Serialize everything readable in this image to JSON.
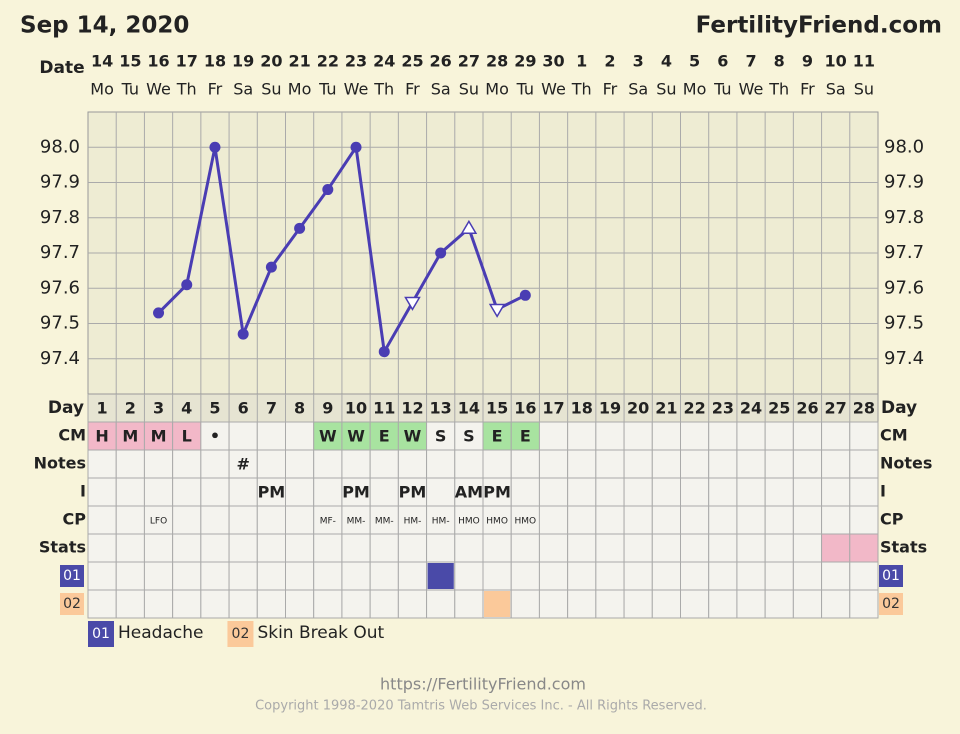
{
  "header": {
    "date": "Sep 14, 2020",
    "site": "FertilityFriend.com"
  },
  "chart_data": {
    "type": "line",
    "x_label": "Date",
    "categories": [
      "14",
      "15",
      "16",
      "17",
      "18",
      "19",
      "20",
      "21",
      "22",
      "23",
      "24",
      "25",
      "26",
      "27",
      "28",
      "29",
      "30",
      "1",
      "2",
      "3",
      "4",
      "5",
      "6",
      "7",
      "8",
      "9",
      "10",
      "11"
    ],
    "weekdays": [
      "Mo",
      "Tu",
      "We",
      "Th",
      "Fr",
      "Sa",
      "Su",
      "Mo",
      "Tu",
      "We",
      "Th",
      "Fr",
      "Sa",
      "Su",
      "Mo",
      "Tu",
      "We",
      "Th",
      "Fr",
      "Sa",
      "Su",
      "Mo",
      "Tu",
      "We",
      "Th",
      "Fr",
      "Sa",
      "Su"
    ],
    "series": [
      {
        "color": "#4a3db3",
        "values": [
          null,
          null,
          97.53,
          97.61,
          98.0,
          97.47,
          97.66,
          97.77,
          97.88,
          98.0,
          97.42,
          97.56,
          97.7,
          97.77,
          97.54,
          97.58,
          null,
          null,
          null,
          null,
          null,
          null,
          null,
          null,
          null,
          null,
          null,
          null
        ],
        "markers": [
          null,
          null,
          "circle",
          "circle",
          "circle",
          "circle",
          "circle",
          "circle",
          "circle",
          "circle",
          "circle",
          "triangle-down",
          "circle",
          "triangle-up",
          "triangle-down",
          "circle",
          null,
          null,
          null,
          null,
          null,
          null,
          null,
          null,
          null,
          null,
          null,
          null
        ]
      }
    ],
    "ylim": [
      97.3,
      98.1
    ],
    "yticks": [
      97.4,
      97.5,
      97.6,
      97.7,
      97.8,
      97.9,
      {
        "value": 98,
        "label": "98.0"
      }
    ],
    "grid": true
  },
  "table": {
    "day_label": "Day",
    "days": [
      1,
      2,
      3,
      4,
      5,
      6,
      7,
      8,
      9,
      10,
      11,
      12,
      13,
      14,
      15,
      16,
      17,
      18,
      19,
      20,
      21,
      22,
      23,
      24,
      25,
      26,
      27,
      28
    ],
    "rows": [
      {
        "label": "CM",
        "style": "cm",
        "cells": [
          "H",
          "M",
          "M",
          "L",
          "•",
          null,
          null,
          null,
          "W",
          "W",
          "E",
          "W",
          "S",
          "S",
          "E",
          "E",
          null,
          null,
          null,
          null,
          null,
          null,
          null,
          null,
          null,
          null,
          null,
          null
        ],
        "colors": [
          "#f2b8c8",
          "#f2b8c8",
          "#f2b8c8",
          "#f2b8c8",
          null,
          null,
          null,
          null,
          "#a8e3a0",
          "#a8e3a0",
          "#a8e3a0",
          "#a8e3a0",
          null,
          null,
          "#a8e3a0",
          "#a8e3a0",
          null,
          null,
          null,
          null,
          null,
          null,
          null,
          null,
          null,
          null,
          null,
          null
        ]
      },
      {
        "label": "Notes",
        "style": "cm",
        "cells": [
          null,
          null,
          null,
          null,
          null,
          "#",
          null,
          null,
          null,
          null,
          null,
          null,
          null,
          null,
          null,
          null,
          null,
          null,
          null,
          null,
          null,
          null,
          null,
          null,
          null,
          null,
          null,
          null
        ]
      },
      {
        "label": "I",
        "style": "cm",
        "cells": [
          null,
          null,
          null,
          null,
          null,
          null,
          "PM",
          null,
          null,
          "PM",
          null,
          "PM",
          null,
          "AM",
          "PM",
          null,
          null,
          null,
          null,
          null,
          null,
          null,
          null,
          null,
          null,
          null,
          null,
          null
        ]
      },
      {
        "label": "CP",
        "style": "small",
        "cells": [
          null,
          null,
          "LFO",
          null,
          null,
          null,
          null,
          null,
          "MF-",
          "MM-",
          "MM-",
          "HM-",
          "HM-",
          "HMO",
          "HMO",
          "HMO",
          null,
          null,
          null,
          null,
          null,
          null,
          null,
          null,
          null,
          null,
          null,
          null
        ]
      },
      {
        "label": "Stats",
        "style": "cm",
        "colors": [
          null,
          null,
          null,
          null,
          null,
          null,
          null,
          null,
          null,
          null,
          null,
          null,
          null,
          null,
          null,
          null,
          null,
          null,
          null,
          null,
          null,
          null,
          null,
          null,
          null,
          null,
          "#f2b8c8",
          "#f2b8c8"
        ]
      }
    ]
  },
  "legend": [
    {
      "code": "01",
      "label": "Headache",
      "color": "#4a4aa8",
      "text_color": "#ffffff",
      "days": [
        13
      ]
    },
    {
      "code": "02",
      "label": "Skin Break Out",
      "color": "#fbc99a",
      "text_color": "#333333",
      "days": [
        15
      ]
    }
  ],
  "footer": {
    "url": "https://FertilityFriend.com",
    "copyright": "Copyright 1998-2020 Tamtris Web Services Inc. - All Rights Reserved."
  }
}
